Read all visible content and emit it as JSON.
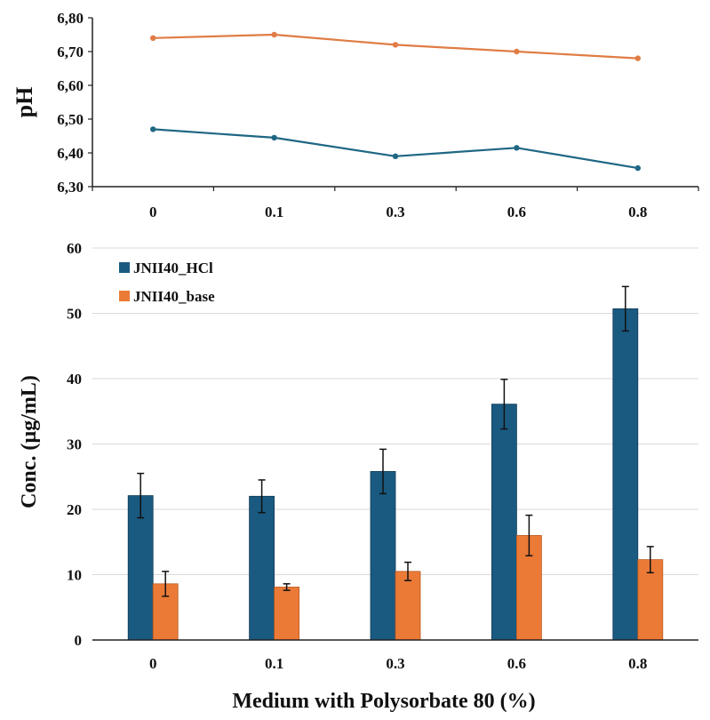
{
  "chart_data": [
    {
      "type": "line",
      "ylabel": "pH",
      "categories": [
        "0",
        "0.1",
        "0.3",
        "0.6",
        "0.8"
      ],
      "ylim": [
        6.3,
        6.8
      ],
      "yticks": [
        "6,30",
        "6,40",
        "6,50",
        "6,60",
        "6,70",
        "6,80"
      ],
      "series": [
        {
          "name": "JNII40_base",
          "color": "#e07c45",
          "values": [
            6.74,
            6.75,
            6.72,
            6.7,
            6.68
          ]
        },
        {
          "name": "JNII40_HCl",
          "color": "#1f6784",
          "values": [
            6.47,
            6.445,
            6.39,
            6.415,
            6.355
          ]
        }
      ]
    },
    {
      "type": "bar",
      "ylabel": "Conc. (µg/mL)",
      "xlabel": "Medium with Polysorbate 80 (%)",
      "categories": [
        "0",
        "0.1",
        "0.3",
        "0.6",
        "0.8"
      ],
      "ylim": [
        0,
        60
      ],
      "yticks": [
        "0",
        "10",
        "20",
        "30",
        "40",
        "50",
        "60"
      ],
      "grid": true,
      "legend_position": "top-left",
      "series": [
        {
          "name": "JNII40_HCl",
          "color": "#1a5a80",
          "values": [
            22.1,
            22.0,
            25.8,
            36.1,
            50.7
          ],
          "errors": [
            3.4,
            2.5,
            3.4,
            3.8,
            3.4
          ]
        },
        {
          "name": "JNII40_base",
          "color": "#ec7a37",
          "values": [
            8.6,
            8.1,
            10.5,
            16.0,
            12.3
          ],
          "errors": [
            1.9,
            0.5,
            1.4,
            3.1,
            2.0
          ]
        }
      ]
    }
  ]
}
